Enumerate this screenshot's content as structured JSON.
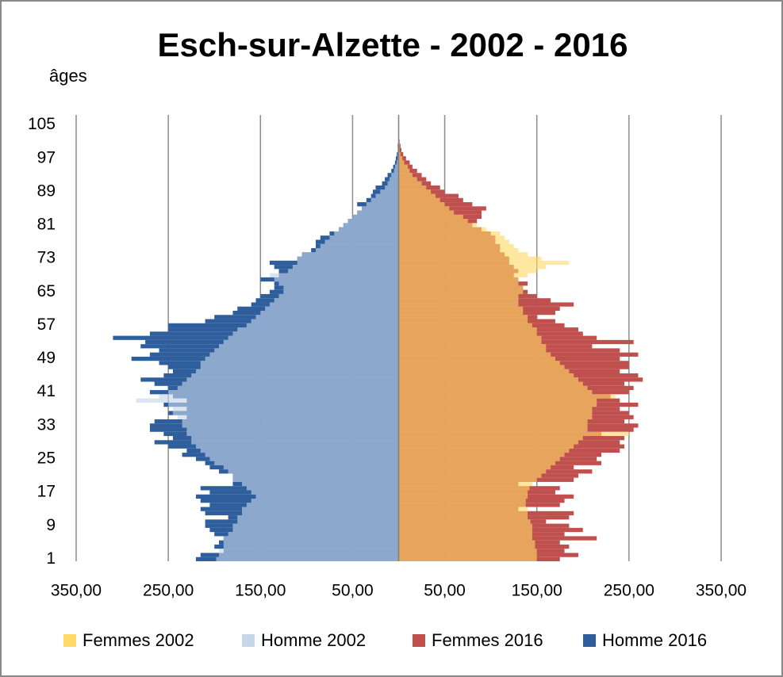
{
  "chart_data": {
    "type": "pyramid",
    "title": "Esch-sur-Alzette - 2002 - 2016",
    "y_label": "âges",
    "categories": [
      "1",
      null,
      null,
      null,
      null,
      null,
      null,
      null,
      "9",
      null,
      null,
      null,
      null,
      null,
      null,
      null,
      "17",
      null,
      null,
      null,
      null,
      null,
      null,
      null,
      "25",
      null,
      null,
      null,
      null,
      null,
      null,
      null,
      "33",
      null,
      null,
      null,
      null,
      null,
      null,
      null,
      "41",
      null,
      null,
      null,
      null,
      null,
      null,
      null,
      "49",
      null,
      null,
      null,
      null,
      null,
      null,
      null,
      "57",
      null,
      null,
      null,
      null,
      null,
      null,
      null,
      "65",
      null,
      null,
      null,
      null,
      null,
      null,
      null,
      "73",
      null,
      null,
      null,
      null,
      null,
      null,
      null,
      "81",
      null,
      null,
      null,
      null,
      null,
      null,
      null,
      "89",
      null,
      null,
      null,
      null,
      null,
      null,
      null,
      "97",
      null,
      null,
      null,
      null,
      null,
      null,
      null,
      "105"
    ],
    "xlim": [
      -350,
      350
    ],
    "xticks": [
      {
        "value": -350,
        "label": "350,00"
      },
      {
        "value": -250,
        "label": "250,00"
      },
      {
        "value": -150,
        "label": "150,00"
      },
      {
        "value": -50,
        "label": "50,00"
      },
      {
        "value": 50,
        "label": "50,00"
      },
      {
        "value": 150,
        "label": "150,00"
      },
      {
        "value": 250,
        "label": "250,00"
      },
      {
        "value": 350,
        "label": "350,00"
      }
    ],
    "grid": true,
    "legend": "bottom",
    "series": [
      {
        "name": "Femmes 2002",
        "color": "#FFD966",
        "values": [
          150,
          150,
          150,
          148,
          148,
          145,
          145,
          145,
          145,
          143,
          140,
          140,
          140,
          138,
          138,
          140,
          140,
          142,
          145,
          150,
          155,
          160,
          165,
          170,
          175,
          180,
          185,
          190,
          195,
          200,
          250,
          205,
          205,
          205,
          210,
          210,
          210,
          215,
          215,
          235,
          210,
          205,
          200,
          195,
          190,
          185,
          180,
          175,
          170,
          165,
          160,
          160,
          155,
          155,
          150,
          150,
          145,
          140,
          140,
          135,
          135,
          130,
          130,
          130,
          135,
          135,
          130,
          130,
          140,
          150,
          160,
          185,
          155,
          140,
          130,
          125,
          120,
          115,
          110,
          95,
          85,
          75,
          70,
          60,
          55,
          50,
          45,
          40,
          35,
          30,
          25,
          20,
          15,
          12,
          10,
          6,
          4,
          2,
          1,
          1,
          0,
          0,
          0,
          0,
          0
        ]
      },
      {
        "name": "Homme 2002",
        "color": "#C6D5EA",
        "values": [
          -198,
          -195,
          -195,
          -190,
          -190,
          -190,
          -185,
          -180,
          -180,
          -175,
          -175,
          -170,
          -170,
          -165,
          -160,
          -155,
          -160,
          -165,
          -170,
          -180,
          -180,
          -185,
          -190,
          -200,
          -205,
          -210,
          -215,
          -220,
          -225,
          -225,
          -230,
          -230,
          -235,
          -235,
          -240,
          -245,
          -245,
          -250,
          -285,
          -260,
          -250,
          -240,
          -235,
          -230,
          -225,
          -220,
          -215,
          -215,
          -210,
          -205,
          -200,
          -195,
          -190,
          -185,
          -180,
          -175,
          -165,
          -160,
          -155,
          -150,
          -145,
          -140,
          -135,
          -130,
          -125,
          -125,
          -130,
          -135,
          -140,
          -120,
          -115,
          -110,
          -110,
          -105,
          -90,
          -85,
          -80,
          -75,
          -70,
          -65,
          -60,
          -55,
          -50,
          -45,
          -40,
          -35,
          -30,
          -25,
          -20,
          -15,
          -12,
          -10,
          -8,
          -5,
          -4,
          -2,
          -1,
          -1,
          -1,
          0,
          0,
          0,
          0,
          0,
          0
        ]
      },
      {
        "name": "Femmes 2016",
        "color": "#C0504D",
        "values": [
          175,
          195,
          180,
          185,
          175,
          215,
          180,
          200,
          185,
          160,
          185,
          190,
          130,
          175,
          180,
          190,
          170,
          175,
          130,
          190,
          195,
          210,
          190,
          220,
          215,
          220,
          240,
          245,
          240,
          245,
          220,
          255,
          260,
          245,
          255,
          250,
          240,
          260,
          240,
          230,
          250,
          255,
          245,
          265,
          260,
          240,
          250,
          250,
          240,
          260,
          240,
          210,
          255,
          215,
          200,
          195,
          180,
          170,
          150,
          170,
          175,
          190,
          165,
          150,
          140,
          135,
          140,
          130,
          125,
          130,
          125,
          120,
          120,
          115,
          110,
          110,
          105,
          105,
          100,
          90,
          80,
          85,
          90,
          90,
          95,
          80,
          70,
          65,
          50,
          45,
          35,
          30,
          25,
          20,
          15,
          12,
          8,
          5,
          3,
          2,
          1,
          0,
          0,
          0,
          0
        ]
      },
      {
        "name": "Homme 2016",
        "color": "#2E5F9C",
        "values": [
          -220,
          -215,
          -190,
          -200,
          -195,
          -190,
          -200,
          -205,
          -210,
          -210,
          -185,
          -210,
          -215,
          -205,
          -215,
          -220,
          -205,
          -215,
          -180,
          -180,
          -180,
          -195,
          -205,
          -210,
          -220,
          -235,
          -230,
          -250,
          -265,
          -245,
          -255,
          -270,
          -270,
          -265,
          -230,
          -250,
          -230,
          -255,
          -230,
          -245,
          -270,
          -250,
          -265,
          -280,
          -255,
          -245,
          -250,
          -260,
          -290,
          -270,
          -260,
          -280,
          -275,
          -310,
          -270,
          -250,
          -250,
          -210,
          -200,
          -180,
          -175,
          -160,
          -155,
          -150,
          -140,
          -135,
          -135,
          -150,
          -130,
          -130,
          -135,
          -140,
          -110,
          -105,
          -95,
          -90,
          -90,
          -85,
          -75,
          -65,
          -60,
          -55,
          -50,
          -45,
          -40,
          -45,
          -35,
          -30,
          -28,
          -25,
          -18,
          -15,
          -12,
          -8,
          -6,
          -4,
          -3,
          -2,
          -1,
          -1,
          0,
          0,
          0,
          0,
          0
        ]
      }
    ]
  }
}
